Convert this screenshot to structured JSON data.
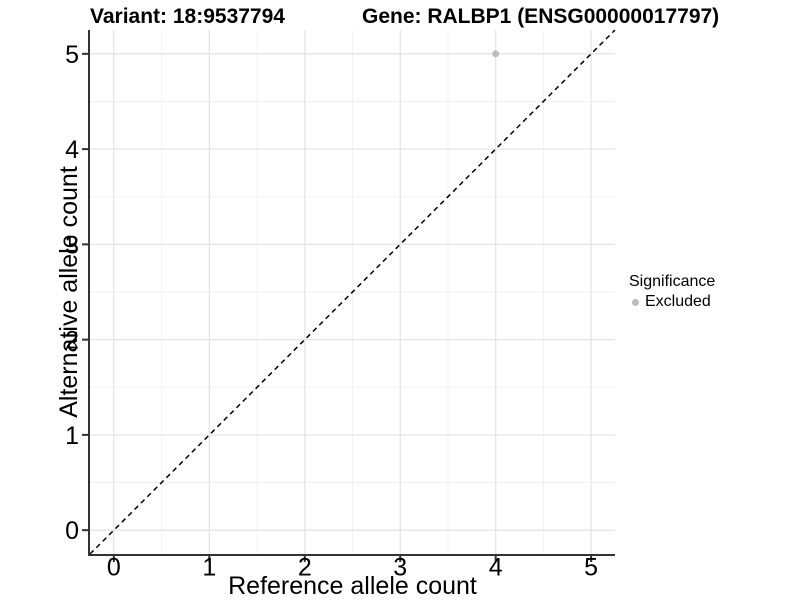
{
  "chart_data": {
    "type": "scatter",
    "titles": {
      "left": "Variant: 18:9537794",
      "right": "Gene: RALBP1 (ENSG00000017797)"
    },
    "xlabel": "Reference allele count",
    "ylabel": "Alternative allele count",
    "xlim": [
      -0.25,
      5.25
    ],
    "ylim": [
      -0.25,
      5.25
    ],
    "x_ticks": [
      0,
      1,
      2,
      3,
      4,
      5
    ],
    "y_ticks": [
      0,
      1,
      2,
      3,
      4,
      5
    ],
    "x_minor": [
      0.5,
      1.5,
      2.5,
      3.5,
      4.5
    ],
    "y_minor": [
      0.5,
      1.5,
      2.5,
      3.5,
      4.5
    ],
    "grid": "major+minor",
    "reference_line": {
      "type": "identity",
      "style": "dashed",
      "color": "#000000"
    },
    "series": [
      {
        "name": "Excluded",
        "color": "#bcbcbc",
        "points": [
          [
            4,
            5
          ]
        ]
      }
    ],
    "legend": {
      "title": "Significance",
      "position": "right",
      "items": [
        {
          "label": "Excluded",
          "color": "#bcbcbc"
        }
      ]
    }
  },
  "style": {
    "background": "#ffffff",
    "text_color": "#000000",
    "axis_color": "#333333",
    "grid_major": "#e5e5e5",
    "grid_minor": "#f2f2f2"
  }
}
